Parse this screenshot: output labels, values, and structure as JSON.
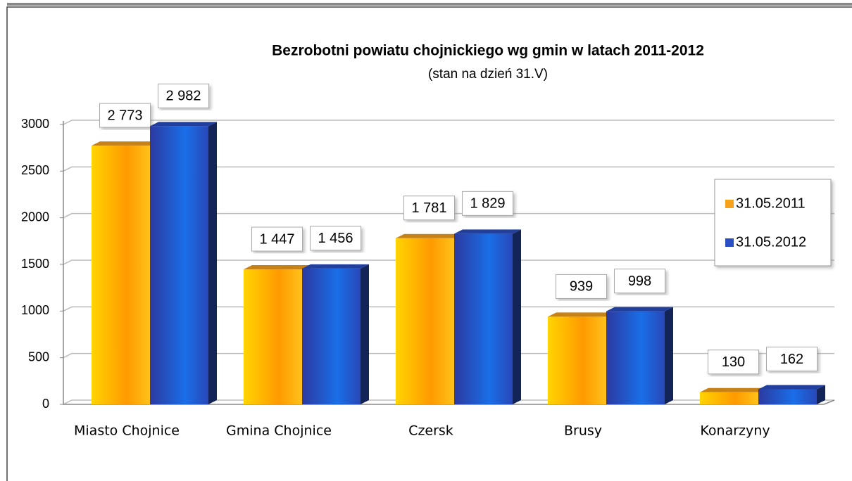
{
  "chart_data": {
    "type": "bar",
    "title": "Bezrobotni powiatu chojnickiego wg gmin w latach 2011-2012",
    "subtitle": "(stan na dzień 31.V)",
    "categories": [
      "Miasto Chojnice",
      "Gmina Chojnice",
      "Czersk",
      "Brusy",
      "Konarzyny"
    ],
    "series": [
      {
        "name": "31.05.2011",
        "color": "#f7a21b",
        "values": [
          2773,
          1447,
          1781,
          939,
          130
        ],
        "value_labels": [
          "2 773",
          "1 447",
          "1 781",
          "939",
          "130"
        ]
      },
      {
        "name": "31.05.2012",
        "color": "#2a4fc4",
        "values": [
          2982,
          1456,
          1829,
          998,
          162
        ],
        "value_labels": [
          "2 982",
          "1 456",
          "1 829",
          "998",
          "162"
        ]
      }
    ],
    "ylim": [
      0,
      3000
    ],
    "yticks": [
      0,
      500,
      1000,
      1500,
      2000,
      2500,
      3000
    ],
    "grid": true,
    "legend": "right"
  }
}
